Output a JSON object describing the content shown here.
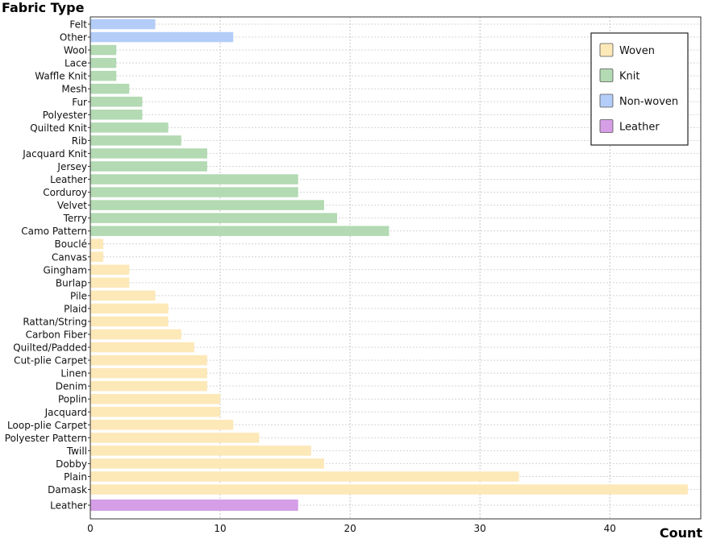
{
  "chart_data": {
    "type": "bar",
    "orientation": "horizontal",
    "ylabel": "Fabric Type",
    "xlabel": "Count",
    "xlim": [
      0,
      47
    ],
    "xticks": [
      0,
      10,
      20,
      30,
      40
    ],
    "grid": true,
    "legend_position": "top-right",
    "categories": [
      {
        "name": "Woven",
        "color": "#fde8b8"
      },
      {
        "name": "Knit",
        "color": "#b3dab3"
      },
      {
        "name": "Non-woven",
        "color": "#b3cdf8"
      },
      {
        "name": "Leather",
        "color": "#d59ee6"
      }
    ],
    "bars": [
      {
        "label": "Felt",
        "value": 5,
        "category": "Non-woven"
      },
      {
        "label": "Other",
        "value": 11,
        "category": "Non-woven"
      },
      {
        "label": "Wool",
        "value": 2,
        "category": "Knit"
      },
      {
        "label": "Lace",
        "value": 2,
        "category": "Knit"
      },
      {
        "label": "Waffle Knit",
        "value": 2,
        "category": "Knit"
      },
      {
        "label": "Mesh",
        "value": 3,
        "category": "Knit"
      },
      {
        "label": "Fur",
        "value": 4,
        "category": "Knit"
      },
      {
        "label": "Polyester",
        "value": 4,
        "category": "Knit"
      },
      {
        "label": "Quilted Knit",
        "value": 6,
        "category": "Knit"
      },
      {
        "label": "Rib",
        "value": 7,
        "category": "Knit"
      },
      {
        "label": "Jacquard Knit",
        "value": 9,
        "category": "Knit"
      },
      {
        "label": "Jersey",
        "value": 9,
        "category": "Knit"
      },
      {
        "label": "Leather",
        "value": 16,
        "category": "Knit"
      },
      {
        "label": "Corduroy",
        "value": 16,
        "category": "Knit"
      },
      {
        "label": "Velvet",
        "value": 18,
        "category": "Knit"
      },
      {
        "label": "Terry",
        "value": 19,
        "category": "Knit"
      },
      {
        "label": "Camo Pattern",
        "value": 23,
        "category": "Knit"
      },
      {
        "label": "Bouclé",
        "value": 1,
        "category": "Woven"
      },
      {
        "label": "Canvas",
        "value": 1,
        "category": "Woven"
      },
      {
        "label": "Gingham",
        "value": 3,
        "category": "Woven"
      },
      {
        "label": "Burlap",
        "value": 3,
        "category": "Woven"
      },
      {
        "label": "Pile",
        "value": 5,
        "category": "Woven"
      },
      {
        "label": "Plaid",
        "value": 6,
        "category": "Woven"
      },
      {
        "label": "Rattan/String",
        "value": 6,
        "category": "Woven"
      },
      {
        "label": "Carbon Fiber",
        "value": 7,
        "category": "Woven"
      },
      {
        "label": "Quilted/Padded",
        "value": 8,
        "category": "Woven"
      },
      {
        "label": "Cut-plie Carpet",
        "value": 9,
        "category": "Woven"
      },
      {
        "label": "Linen",
        "value": 9,
        "category": "Woven"
      },
      {
        "label": "Denim",
        "value": 9,
        "category": "Woven"
      },
      {
        "label": "Poplin",
        "value": 10,
        "category": "Woven"
      },
      {
        "label": "Jacquard",
        "value": 10,
        "category": "Woven"
      },
      {
        "label": "Loop-plie Carpet",
        "value": 11,
        "category": "Woven"
      },
      {
        "label": "Polyester Pattern",
        "value": 13,
        "category": "Woven"
      },
      {
        "label": "Twill",
        "value": 17,
        "category": "Woven"
      },
      {
        "label": "Dobby",
        "value": 18,
        "category": "Woven"
      },
      {
        "label": "Plain",
        "value": 33,
        "category": "Woven"
      },
      {
        "label": "Damask",
        "value": 46,
        "category": "Woven"
      },
      {
        "label": "Leather",
        "value": 16,
        "category": "Leather"
      }
    ]
  }
}
